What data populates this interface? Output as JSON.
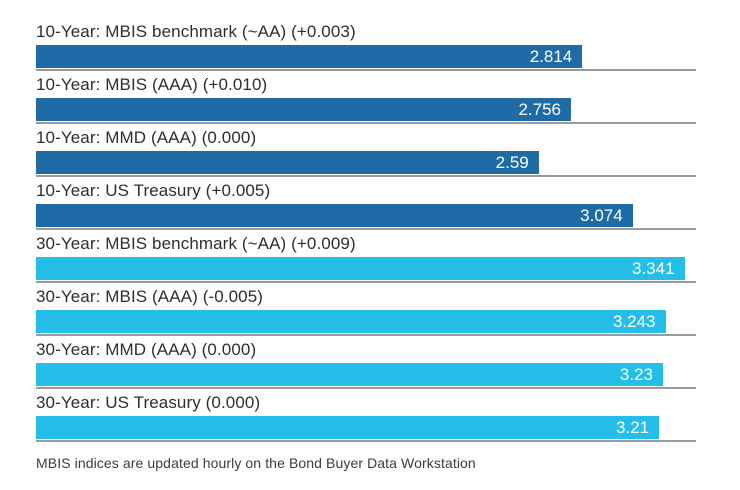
{
  "chart_data": {
    "type": "bar",
    "orientation": "horizontal",
    "title": "",
    "xlabel": "",
    "ylabel": "",
    "xlim": [
      0,
      3.4
    ],
    "grid": false,
    "legend": false,
    "bars": [
      {
        "label": "10-Year: MBIS benchmark (~AA) (+0.003)",
        "value": 2.814,
        "display_value": "2.814",
        "group": "10-year"
      },
      {
        "label": "10-Year: MBIS (AAA) (+0.010)",
        "value": 2.756,
        "display_value": "2.756",
        "group": "10-year"
      },
      {
        "label": "10-Year: MMD (AAA) (0.000)",
        "value": 2.59,
        "display_value": "2.59",
        "group": "10-year"
      },
      {
        "label": "10-Year: US Treasury (+0.005)",
        "value": 3.074,
        "display_value": "3.074",
        "group": "10-year"
      },
      {
        "label": "30-Year: MBIS benchmark (~AA) (+0.009)",
        "value": 3.341,
        "display_value": "3.341",
        "group": "30-year"
      },
      {
        "label": "30-Year: MBIS (AAA) (-0.005)",
        "value": 3.243,
        "display_value": "3.243",
        "group": "30-year"
      },
      {
        "label": "30-Year: MMD (AAA) (0.000)",
        "value": 3.23,
        "display_value": "3.23",
        "group": "30-year"
      },
      {
        "label": "30-Year: US Treasury (0.000)",
        "value": 3.21,
        "display_value": "3.21",
        "group": "30-year"
      }
    ],
    "group_colors": {
      "10-year": "#1F6BA5",
      "30-year": "#24BEE8"
    },
    "value_label_position": "inside-end"
  },
  "footer": {
    "note": "MBIS indices are updated hourly on the Bond Buyer Data Workstation"
  },
  "colors": {
    "background": "#FFFFFF",
    "separator_line": "#9B9B9B",
    "label_text": "#2E2E2E",
    "value_text": "#FFFFFF"
  }
}
